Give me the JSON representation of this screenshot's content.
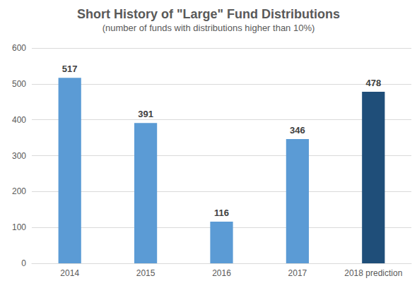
{
  "chart_data": {
    "type": "bar",
    "title": "Short History of \"Large\" Fund Distributions",
    "subtitle": "(number of funds with distributions higher than 10%)",
    "categories": [
      "2014",
      "2015",
      "2016",
      "2017",
      "2018 prediction"
    ],
    "values": [
      517,
      391,
      116,
      346,
      478
    ],
    "colors": [
      "#5b9bd5",
      "#5b9bd5",
      "#5b9bd5",
      "#5b9bd5",
      "#1f4e79"
    ],
    "ylim": [
      0,
      600
    ],
    "yticks": [
      0,
      100,
      200,
      300,
      400,
      500,
      600
    ],
    "grid": true,
    "data_labels": true
  }
}
